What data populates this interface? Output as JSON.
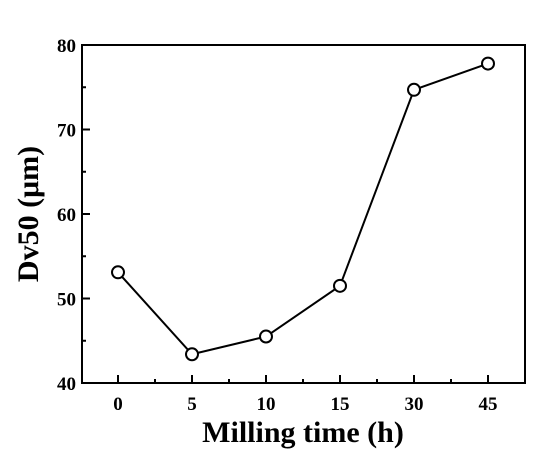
{
  "chart_data": {
    "type": "line",
    "categories": [
      "0",
      "5",
      "10",
      "15",
      "30",
      "45"
    ],
    "series": [
      {
        "values": [
          53.1,
          43.4,
          45.5,
          51.5,
          74.7,
          77.8
        ]
      }
    ],
    "xlabel": "Milling time (h)",
    "ylabel": "Dv50 (μm)",
    "ylim": [
      40,
      80
    ],
    "yticks": [
      "40",
      "50",
      "60",
      "70",
      "80"
    ],
    "grid": false,
    "marker": "open-circle",
    "line_color": "#000000"
  }
}
